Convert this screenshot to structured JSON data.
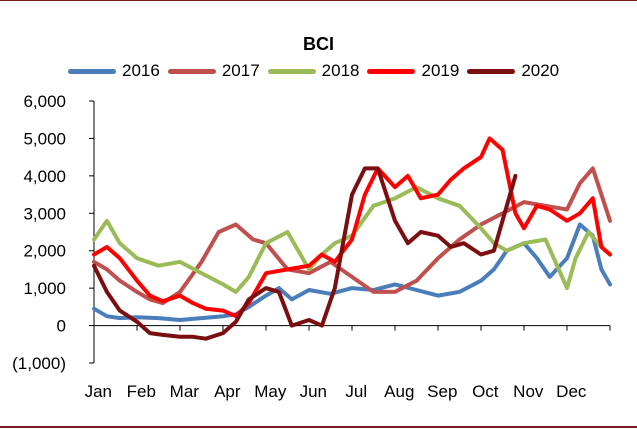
{
  "chart_data": {
    "type": "line",
    "title": "BCI",
    "xlabel": "",
    "ylabel": "",
    "ylim": [
      -1000,
      6000
    ],
    "yticks": [
      -1000,
      0,
      1000,
      2000,
      3000,
      4000,
      5000,
      6000
    ],
    "ytick_labels": [
      "(1,000)",
      "0",
      "1,000",
      "2,000",
      "3,000",
      "4,000",
      "5,000",
      "6,000"
    ],
    "negative_label_color": "#e00000",
    "categories": [
      "Jan",
      "Feb",
      "Mar",
      "Apr",
      "May",
      "Jun",
      "Jul",
      "Aug",
      "Sep",
      "Oct",
      "Nov",
      "Dec"
    ],
    "xlim": [
      0,
      12
    ],
    "series": [
      {
        "name": "2016",
        "color": "#4a7ebb",
        "x": [
          0,
          0.3,
          0.6,
          1,
          1.5,
          2,
          2.5,
          3,
          3.3,
          3.6,
          4,
          4.3,
          4.6,
          5,
          5.5,
          6,
          6.5,
          7,
          7.5,
          8,
          8.5,
          9,
          9.3,
          9.6,
          10,
          10.3,
          10.6,
          11,
          11.3,
          11.6,
          11.8,
          12
        ],
        "values": [
          450,
          250,
          200,
          220,
          200,
          150,
          200,
          250,
          300,
          500,
          800,
          1000,
          700,
          950,
          850,
          1000,
          950,
          1100,
          950,
          800,
          900,
          1200,
          1500,
          2000,
          2200,
          1800,
          1300,
          1800,
          2700,
          2400,
          1500,
          1100
        ]
      },
      {
        "name": "2017",
        "color": "#c0504d",
        "x": [
          0,
          0.3,
          0.6,
          1,
          1.3,
          1.6,
          2,
          2.5,
          2.9,
          3.3,
          3.7,
          4,
          4.5,
          5,
          5.5,
          6,
          6.5,
          7,
          7.5,
          8,
          8.5,
          9,
          9.5,
          10,
          10.5,
          11,
          11.3,
          11.6,
          12
        ],
        "values": [
          1700,
          1500,
          1200,
          900,
          700,
          600,
          900,
          1700,
          2500,
          2700,
          2300,
          2200,
          1500,
          1400,
          1700,
          1300,
          900,
          900,
          1200,
          1800,
          2300,
          2700,
          3000,
          3300,
          3200,
          3100,
          3800,
          4200,
          2800
        ]
      },
      {
        "name": "2018",
        "color": "#9bbb59",
        "x": [
          0,
          0.3,
          0.6,
          1,
          1.5,
          2,
          2.5,
          3,
          3.3,
          3.6,
          4,
          4.5,
          5,
          5.3,
          5.6,
          6,
          6.5,
          7,
          7.5,
          8,
          8.5,
          9,
          9.3,
          9.6,
          10,
          10.5,
          11,
          11.2,
          11.5,
          11.8,
          12
        ],
        "values": [
          2300,
          2800,
          2200,
          1800,
          1600,
          1700,
          1400,
          1100,
          900,
          1300,
          2200,
          2500,
          1500,
          1900,
          2200,
          2400,
          3200,
          3400,
          3700,
          3400,
          3200,
          2600,
          2200,
          2000,
          2200,
          2300,
          1000,
          1800,
          2500,
          2100,
          1900
        ]
      },
      {
        "name": "2019",
        "color": "#ff0000",
        "x": [
          0,
          0.3,
          0.6,
          1,
          1.3,
          1.6,
          2,
          2.3,
          2.6,
          3,
          3.3,
          3.6,
          4,
          4.5,
          5,
          5.3,
          5.6,
          6,
          6.3,
          6.6,
          7,
          7.3,
          7.6,
          8,
          8.3,
          8.6,
          9,
          9.2,
          9.5,
          9.8,
          10,
          10.3,
          10.6,
          11,
          11.3,
          11.6,
          11.8,
          12
        ],
        "values": [
          1900,
          2100,
          1800,
          1200,
          800,
          650,
          800,
          600,
          450,
          400,
          250,
          600,
          1400,
          1500,
          1600,
          1900,
          1700,
          2300,
          3500,
          4200,
          3700,
          4000,
          3400,
          3500,
          3900,
          4200,
          4500,
          5000,
          4700,
          3000,
          2600,
          3200,
          3100,
          2800,
          3000,
          3400,
          2100,
          1900
        ]
      },
      {
        "name": "2020",
        "color": "#7b0f0f",
        "x": [
          0,
          0.3,
          0.6,
          1,
          1.3,
          1.6,
          2,
          2.3,
          2.6,
          3,
          3.3,
          3.6,
          4,
          4.3,
          4.6,
          5,
          5.3,
          5.6,
          6,
          6.3,
          6.6,
          7,
          7.3,
          7.6,
          8,
          8.3,
          8.6,
          9,
          9.3,
          9.6,
          9.8
        ],
        "values": [
          1600,
          900,
          400,
          100,
          -200,
          -250,
          -300,
          -300,
          -350,
          -200,
          100,
          700,
          1000,
          900,
          0,
          150,
          0,
          1000,
          3500,
          4200,
          4200,
          2800,
          2200,
          2500,
          2400,
          2100,
          2200,
          1900,
          2000,
          3200,
          4000
        ]
      }
    ]
  }
}
